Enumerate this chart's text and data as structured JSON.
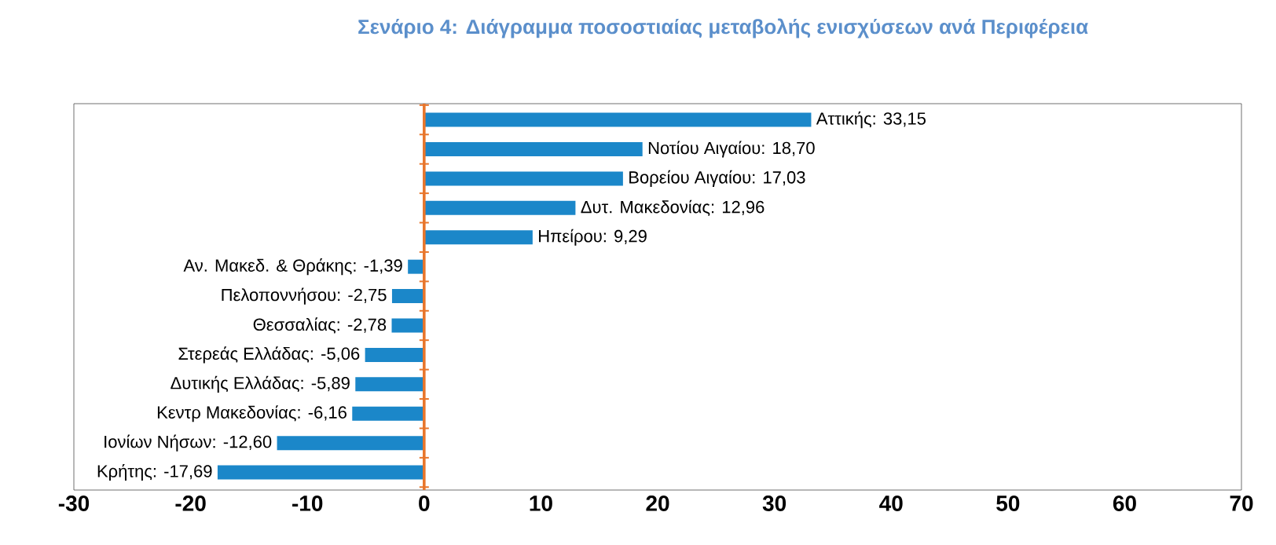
{
  "chart_data": {
    "type": "bar",
    "orientation": "horizontal",
    "title": "Σενάριο 4: Διάγραμμα ποσοστιαίας μεταβολής ενισχύσεων ανά Περιφέρεια",
    "categories": [
      null,
      null,
      null,
      null,
      null,
      null,
      null,
      null,
      null,
      null,
      null,
      null,
      null
    ],
    "values": [
      33.15,
      18.7,
      17.03,
      12.96,
      9.29,
      -1.39,
      -2.75,
      -2.78,
      -5.06,
      -5.89,
      -6.16,
      -12.6,
      -17.69
    ],
    "value_labels": [
      "Αττικής: 33,15",
      "Νοτίου Αιγαίου: 18,70",
      "Βορείου Αιγαίου: 17,03",
      "Δυτ. Μακεδονίας: 12,96",
      "Ηπείρου: 9,29",
      "Αν. Μακεδ. & Θράκης: -1,39",
      "Πελοποννήσου: -2,75",
      "Θεσσαλίας: -2,78",
      "Στερεάς Ελλάδας: -5,06",
      "Δυτικής Ελλάδας: -5,89",
      "Κεντρ Μακεδονίας: -6,16",
      "Ιονίων Νήσων: -12,60",
      "Κρήτης: -17,69"
    ],
    "color": "#1b87c9",
    "xlim": [
      -30,
      70
    ],
    "xticks": [
      -30,
      -20,
      -10,
      0,
      10,
      20,
      30,
      40,
      50,
      60,
      70
    ],
    "ref_lines": [
      {
        "axis": "x",
        "value": 0,
        "color": "#e8762c"
      }
    ]
  }
}
